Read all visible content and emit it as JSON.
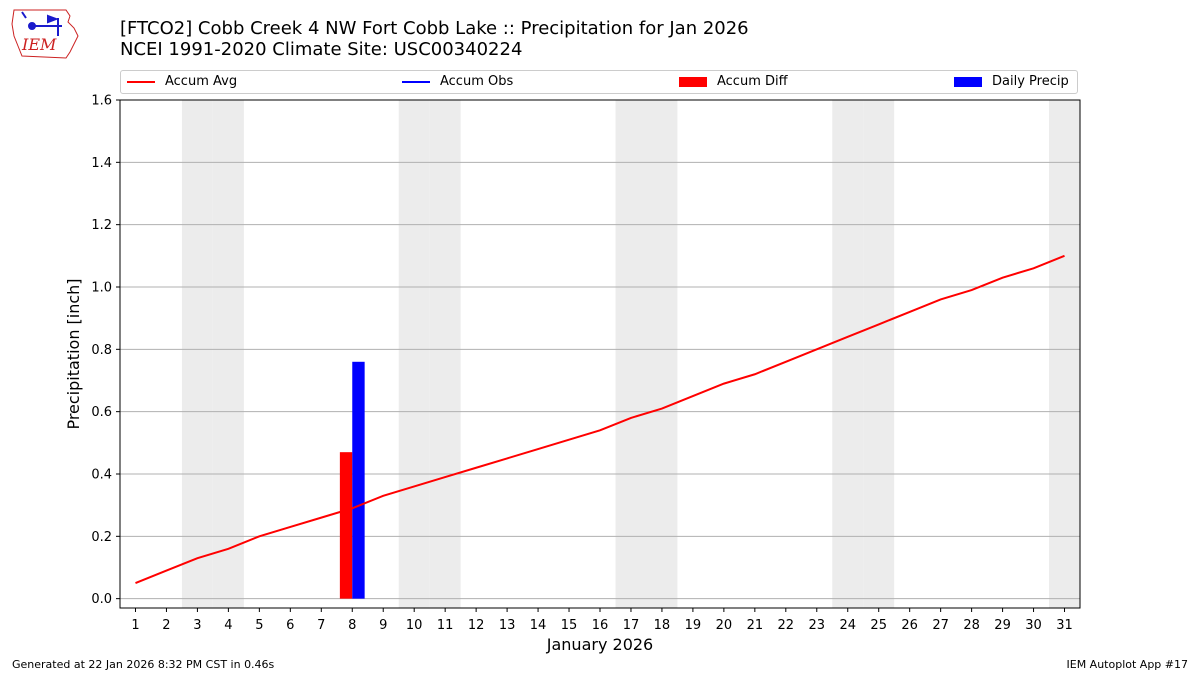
{
  "header": {
    "title_line1": "[FTCO2] Cobb Creek 4 NW Fort Cobb Lake :: Precipitation for Jan 2026",
    "title_line2": "NCEI 1991-2020 Climate Site: USC00340224"
  },
  "logo": {
    "text": "IEM",
    "icon": "iem-iowa-logo-icon"
  },
  "footer": {
    "generated": "Generated at 22 Jan 2026 8:32 PM CST in 0.46s",
    "app": "IEM Autoplot App #17"
  },
  "colors": {
    "avg": "#ff0000",
    "obs": "#0000ff",
    "diff": "#ff0000",
    "daily": "#0000ff",
    "weekend": "#ececec",
    "grid": "#b0b0b0"
  },
  "chart_data": {
    "type": "bar",
    "xlabel": "January 2026",
    "ylabel": "Precipitation [inch]",
    "ylim": [
      -0.03,
      1.6
    ],
    "yticks": [
      0.0,
      0.2,
      0.4,
      0.6,
      0.8,
      1.0,
      1.2,
      1.4,
      1.6
    ],
    "ytick_labels": [
      "0.0",
      "0.2",
      "0.4",
      "0.6",
      "0.8",
      "1.0",
      "1.2",
      "1.4",
      "1.6"
    ],
    "xlim": [
      0.5,
      31.5
    ],
    "categories": [
      1,
      2,
      3,
      4,
      5,
      6,
      7,
      8,
      9,
      10,
      11,
      12,
      13,
      14,
      15,
      16,
      17,
      18,
      19,
      20,
      21,
      22,
      23,
      24,
      25,
      26,
      27,
      28,
      29,
      30,
      31
    ],
    "grid": "horizontal",
    "legend_placement": "top",
    "weekend_days": [
      3,
      4,
      10,
      11,
      17,
      18,
      24,
      25,
      31
    ],
    "legend": [
      {
        "label": "Accum Avg",
        "kind": "line",
        "color": "#ff0000"
      },
      {
        "label": "Accum Obs",
        "kind": "line",
        "color": "#0000ff"
      },
      {
        "label": "Accum Diff",
        "kind": "box",
        "color": "#ff0000"
      },
      {
        "label": "Daily Precip",
        "kind": "box",
        "color": "#0000ff"
      }
    ],
    "series": [
      {
        "name": "Accum Avg",
        "type": "line",
        "values": [
          0.05,
          0.09,
          0.13,
          0.16,
          0.2,
          0.23,
          0.26,
          0.29,
          0.33,
          0.36,
          0.39,
          0.42,
          0.45,
          0.48,
          0.51,
          0.54,
          0.58,
          0.61,
          0.65,
          0.69,
          0.72,
          0.76,
          0.8,
          0.84,
          0.88,
          0.92,
          0.96,
          0.99,
          1.03,
          1.06,
          1.1
        ]
      },
      {
        "name": "Accum Diff",
        "type": "bar",
        "points": [
          {
            "x": 8,
            "value": 0.47
          }
        ]
      },
      {
        "name": "Daily Precip",
        "type": "bar",
        "points": [
          {
            "x": 8,
            "value": 0.76
          }
        ]
      }
    ]
  }
}
